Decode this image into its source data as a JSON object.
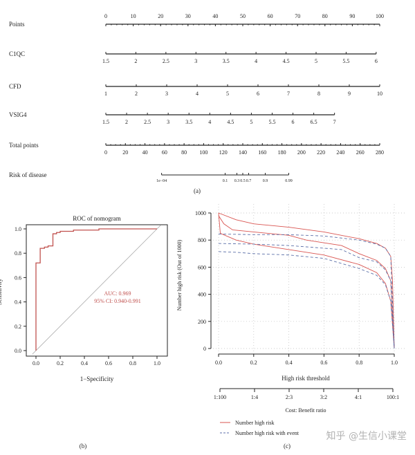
{
  "chart_data": [
    {
      "type": "nomogram",
      "panel_label": "(a)",
      "rows": [
        {
          "name": "Points",
          "ticks": [
            "0",
            "10",
            "20",
            "30",
            "40",
            "50",
            "60",
            "70",
            "80",
            "90",
            "100"
          ],
          "values": [
            0,
            10,
            20,
            30,
            40,
            50,
            60,
            70,
            80,
            90,
            100
          ],
          "points_range": [
            0,
            100
          ],
          "labels_above": true
        },
        {
          "name": "C1QC",
          "ticks": [
            "1.5",
            "2",
            "2.5",
            "3",
            "3.5",
            "4",
            "4.5",
            "5",
            "5.5",
            "6"
          ],
          "values": [
            1.5,
            2,
            2.5,
            3,
            3.5,
            4,
            4.5,
            5,
            5.5,
            6
          ],
          "points_range": [
            0,
            98.7
          ]
        },
        {
          "name": "CFD",
          "ticks": [
            "1",
            "2",
            "3",
            "4",
            "5",
            "6",
            "7",
            "8",
            "9",
            "10"
          ],
          "values": [
            1,
            2,
            3,
            4,
            5,
            6,
            7,
            8,
            9,
            10
          ],
          "points_range": [
            0,
            100
          ]
        },
        {
          "name": "VSIG4",
          "ticks": [
            "1.5",
            "2",
            "2.5",
            "3",
            "3.5",
            "4",
            "4.5",
            "5",
            "5.5",
            "6",
            "6.5",
            "7"
          ],
          "values": [
            1.5,
            2,
            2.5,
            3,
            3.5,
            4,
            4.5,
            5,
            5.5,
            6,
            6.5,
            7
          ],
          "points_range": [
            0,
            83.5
          ]
        },
        {
          "name": "Total points",
          "ticks": [
            "0",
            "20",
            "40",
            "60",
            "80",
            "100",
            "120",
            "140",
            "160",
            "180",
            "200",
            "220",
            "240",
            "260",
            "280"
          ],
          "values": [
            0,
            20,
            40,
            60,
            80,
            100,
            120,
            140,
            160,
            180,
            200,
            220,
            240,
            260,
            280
          ],
          "points_range": [
            0,
            100
          ]
        },
        {
          "name": "Risk of disease",
          "ticks": [
            "1e−04",
            "0.1",
            "0.3",
            "0.5",
            "0.7",
            "0.9",
            "0.99"
          ],
          "total_points": [
            57,
            122,
            134,
            140,
            146,
            163,
            187
          ]
        }
      ]
    },
    {
      "type": "line",
      "panel_label": "(b)",
      "title": "ROC of nomogram",
      "xlabel": "1−Specificity",
      "ylabel": "Sensitivity",
      "xlim": [
        0,
        1
      ],
      "ylim": [
        0,
        1
      ],
      "xticks": [
        "0.0",
        "0.2",
        "0.4",
        "0.6",
        "0.8",
        "1.0"
      ],
      "yticks": [
        "0.0",
        "0.2",
        "0.4",
        "0.6",
        "0.8",
        "1.0"
      ],
      "auc_label": "AUC: 0.969",
      "ci_label": "95% CI: 0.940-0.991",
      "roc": [
        [
          0,
          0
        ],
        [
          0,
          0.72
        ],
        [
          0.035,
          0.72
        ],
        [
          0.035,
          0.84
        ],
        [
          0.07,
          0.84
        ],
        [
          0.07,
          0.85
        ],
        [
          0.1,
          0.85
        ],
        [
          0.1,
          0.86
        ],
        [
          0.14,
          0.86
        ],
        [
          0.14,
          0.96
        ],
        [
          0.17,
          0.96
        ],
        [
          0.17,
          0.97
        ],
        [
          0.2,
          0.97
        ],
        [
          0.2,
          0.98
        ],
        [
          0.31,
          0.98
        ],
        [
          0.31,
          0.99
        ],
        [
          0.52,
          0.99
        ],
        [
          0.52,
          1.0
        ],
        [
          1,
          1
        ]
      ],
      "color": "#c0504d"
    },
    {
      "type": "line",
      "panel_label": "(c)",
      "xlabel": "High risk threshold",
      "ylabel": "Number high risk (Out of 1000)",
      "xlim": [
        0,
        1
      ],
      "ylim": [
        0,
        1000
      ],
      "xticks": [
        "0.0",
        "0.2",
        "0.4",
        "0.6",
        "0.8",
        "1.0"
      ],
      "yticks": [
        "0",
        "200",
        "400",
        "600",
        "800",
        "1000"
      ],
      "grid": true,
      "secondary_axis": {
        "label": "Cost: Benefit ratio",
        "ticks": [
          "1:100",
          "1:4",
          "2:3",
          "3:2",
          "4:1",
          "100:1"
        ],
        "positions": [
          0,
          0.2,
          0.4,
          0.6,
          0.8,
          1.0
        ]
      },
      "legend": {
        "placement": "bottom-left",
        "entries": [
          "Number high risk",
          "Number high risk with event"
        ]
      },
      "series": [
        {
          "name": "Number high risk",
          "style": "solid",
          "color": "#d9534f",
          "points": [
            [
              0,
              1000
            ],
            [
              0.1,
              950
            ],
            [
              0.2,
              920
            ],
            [
              0.4,
              895
            ],
            [
              0.6,
              860
            ],
            [
              0.8,
              810
            ],
            [
              0.9,
              775
            ],
            [
              0.95,
              740
            ],
            [
              0.98,
              680
            ],
            [
              0.99,
              500
            ],
            [
              1,
              0
            ]
          ]
        },
        {
          "name": "Number high risk",
          "style": "solid",
          "color": "#d9534f",
          "points": [
            [
              0,
              980
            ],
            [
              0.03,
              920
            ],
            [
              0.08,
              875
            ],
            [
              0.2,
              860
            ],
            [
              0.4,
              835
            ],
            [
              0.5,
              800
            ],
            [
              0.7,
              760
            ],
            [
              0.8,
              700
            ],
            [
              0.9,
              650
            ],
            [
              0.95,
              590
            ],
            [
              0.98,
              500
            ],
            [
              1,
              0
            ]
          ]
        },
        {
          "name": "Number high risk",
          "style": "solid",
          "color": "#d9534f",
          "points": [
            [
              0,
              1000
            ],
            [
              0.01,
              850
            ],
            [
              0.1,
              800
            ],
            [
              0.2,
              770
            ],
            [
              0.4,
              730
            ],
            [
              0.6,
              690
            ],
            [
              0.8,
              620
            ],
            [
              0.9,
              560
            ],
            [
              0.95,
              480
            ],
            [
              0.98,
              350
            ],
            [
              1,
              0
            ]
          ]
        },
        {
          "name": "Number high risk with event",
          "style": "dashed",
          "color": "#5b6fa8",
          "points": [
            [
              0,
              845
            ],
            [
              0.2,
              840
            ],
            [
              0.4,
              840
            ],
            [
              0.6,
              830
            ],
            [
              0.8,
              800
            ],
            [
              0.9,
              770
            ],
            [
              0.95,
              740
            ],
            [
              0.98,
              680
            ],
            [
              1,
              0
            ]
          ]
        },
        {
          "name": "Number high risk with event",
          "style": "dashed",
          "color": "#5b6fa8",
          "points": [
            [
              0,
              775
            ],
            [
              0.2,
              770
            ],
            [
              0.4,
              760
            ],
            [
              0.5,
              750
            ],
            [
              0.7,
              730
            ],
            [
              0.8,
              670
            ],
            [
              0.9,
              640
            ],
            [
              0.95,
              580
            ],
            [
              0.98,
              500
            ],
            [
              1,
              0
            ]
          ]
        },
        {
          "name": "Number high risk with event",
          "style": "dashed",
          "color": "#5b6fa8",
          "points": [
            [
              0,
              715
            ],
            [
              0.1,
              710
            ],
            [
              0.2,
              700
            ],
            [
              0.4,
              690
            ],
            [
              0.6,
              665
            ],
            [
              0.8,
              590
            ],
            [
              0.9,
              540
            ],
            [
              0.95,
              470
            ],
            [
              0.98,
              350
            ],
            [
              1,
              0
            ]
          ]
        }
      ]
    }
  ],
  "watermark": "知乎 @生信小课堂"
}
